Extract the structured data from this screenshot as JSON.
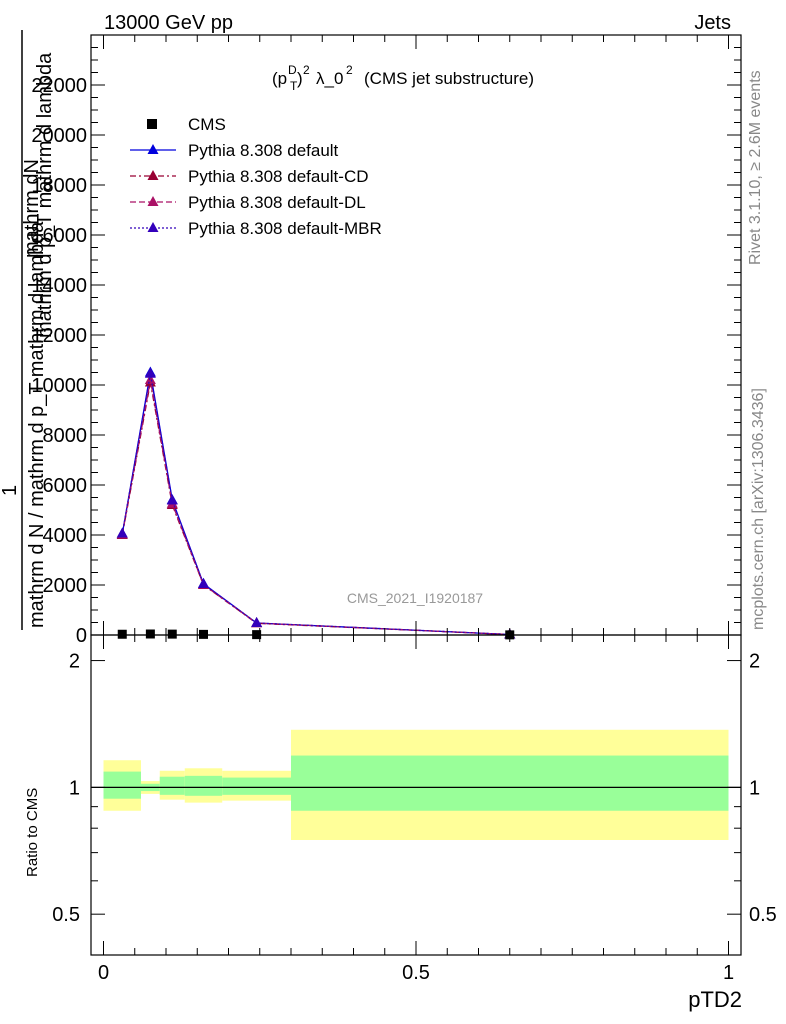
{
  "header": {
    "left": "13000 GeV pp",
    "right": "Jets"
  },
  "side": {
    "rivet": "Rivet 3.1.10, ≥ 2.6M events",
    "mcplots": "mcplots.cern.ch [arXiv:1306.3436]"
  },
  "watermark": "CMS_2021_I1920187",
  "chart_data": [
    {
      "type": "line",
      "title": "(p_T^D)^2 λ_0^2 (CMS jet substructure)",
      "xlabel": "pTD2",
      "ylabel_lines": [
        "mathrm dN",
        "mathrm d p_T mathrm d lambda",
        "1",
        "mathrm d N / mathrm d p_T mathrm d lambda"
      ],
      "xlim": [
        -0.02,
        1.02
      ],
      "ylim": [
        0,
        24000
      ],
      "yticks": [
        0,
        2000,
        4000,
        6000,
        8000,
        10000,
        12000,
        14000,
        16000,
        18000,
        20000,
        22000
      ],
      "ytick_labels": [
        "0",
        "2000",
        "4000",
        "6000",
        "8000",
        "10000",
        "12000",
        "14000",
        "16000",
        "18000",
        "20000",
        "22000"
      ],
      "legend_position": "top-left",
      "series": [
        {
          "name": "CMS",
          "color": "#000000",
          "marker": "square",
          "style": "points",
          "x": [
            0.03,
            0.075,
            0.11,
            0.16,
            0.245,
            0.65
          ],
          "y": [
            30,
            40,
            35,
            25,
            15,
            5
          ]
        },
        {
          "name": "Pythia 8.308 default",
          "color": "#0000dd",
          "marker": "triangle",
          "style": "solid",
          "x": [
            0.03,
            0.075,
            0.11,
            0.16,
            0.245,
            0.65
          ],
          "y": [
            4050,
            10500,
            5400,
            2050,
            480,
            20
          ]
        },
        {
          "name": "Pythia 8.308 default-CD",
          "color": "#990033",
          "marker": "triangle",
          "style": "dashdot",
          "x": [
            0.03,
            0.075,
            0.11,
            0.16,
            0.245,
            0.65
          ],
          "y": [
            4000,
            10100,
            5200,
            2000,
            470,
            20
          ]
        },
        {
          "name": "Pythia 8.308 default-DL",
          "color": "#aa1166",
          "marker": "triangle",
          "style": "dashed",
          "x": [
            0.03,
            0.075,
            0.11,
            0.16,
            0.245,
            0.65
          ],
          "y": [
            4020,
            10200,
            5250,
            2010,
            475,
            20
          ]
        },
        {
          "name": "Pythia 8.308 default-MBR",
          "color": "#3300bb",
          "marker": "triangle",
          "style": "dotted",
          "x": [
            0.03,
            0.075,
            0.11,
            0.16,
            0.245,
            0.65
          ],
          "y": [
            4060,
            10450,
            5380,
            2040,
            480,
            20
          ]
        }
      ]
    },
    {
      "type": "area",
      "ylabel": "Ratio to CMS",
      "xlabel": "pTD2",
      "ylim": [
        0.4,
        2.3
      ],
      "xlim": [
        -0.02,
        1.02
      ],
      "xticks": [
        0,
        0.5,
        1
      ],
      "xtick_labels": [
        "0",
        "0.5",
        "1"
      ],
      "yticks": [
        0.5,
        1,
        2
      ],
      "ytick_labels": [
        "0.5",
        "1",
        "2"
      ],
      "reference": 1,
      "bins": [
        {
          "x0": 0.0,
          "x1": 0.06,
          "inner": [
            0.94,
            1.09
          ],
          "outer": [
            0.88,
            1.16
          ]
        },
        {
          "x0": 0.06,
          "x1": 0.09,
          "inner": [
            0.98,
            1.02
          ],
          "outer": [
            0.965,
            1.035
          ]
        },
        {
          "x0": 0.09,
          "x1": 0.13,
          "inner": [
            0.96,
            1.06
          ],
          "outer": [
            0.935,
            1.095
          ]
        },
        {
          "x0": 0.13,
          "x1": 0.19,
          "inner": [
            0.955,
            1.065
          ],
          "outer": [
            0.92,
            1.11
          ]
        },
        {
          "x0": 0.19,
          "x1": 0.3,
          "inner": [
            0.96,
            1.055
          ],
          "outer": [
            0.93,
            1.095
          ]
        },
        {
          "x0": 0.3,
          "x1": 1.0,
          "inner": [
            0.88,
            1.19
          ],
          "outer": [
            0.75,
            1.37
          ]
        }
      ],
      "colors": {
        "inner": "#99ff99",
        "outer": "#ffff99"
      }
    }
  ]
}
